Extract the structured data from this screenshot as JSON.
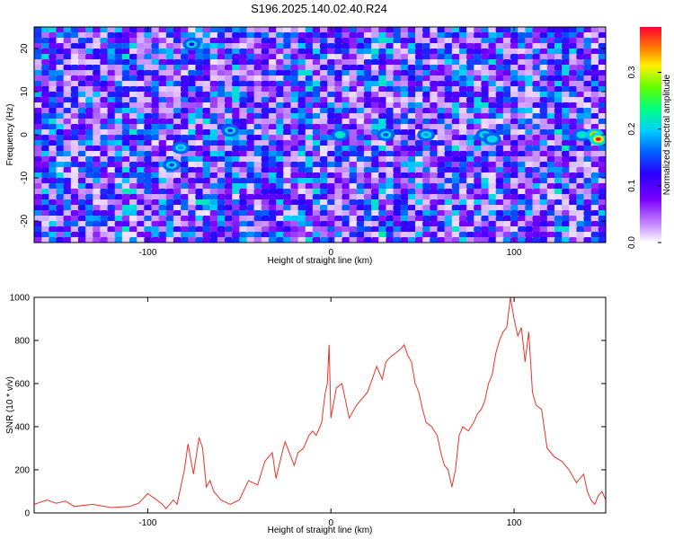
{
  "figure_title": "S196.2025.140.02.40.R24",
  "colorbar": {
    "label": "Normalized spectral amplitude",
    "ticks": [
      "0.0",
      "0.1",
      "0.2",
      "0.3"
    ],
    "tick_values": [
      0.0,
      0.1,
      0.2,
      0.3
    ],
    "range": [
      0,
      0.38
    ]
  },
  "chart_data": [
    {
      "type": "heatmap",
      "title": "S196.2025.140.02.40.R24",
      "xlabel": "Height of straight line (km)",
      "ylabel": "Frequency (Hz)",
      "xlim": [
        -162,
        150
      ],
      "ylim": [
        -25,
        25
      ],
      "x_ticks": [
        -100,
        0,
        100
      ],
      "y_ticks": [
        -20,
        -10,
        0,
        10,
        20
      ],
      "x_tick_labels": [
        "-100",
        "0",
        "100"
      ],
      "y_tick_labels": [
        "-20",
        "-10",
        "0",
        "10",
        "20"
      ],
      "colormap": "rainbow (white-purple-blue-cyan-green-yellow-red)",
      "value_range": [
        0,
        0.38
      ],
      "hotspots": [
        {
          "x": -82,
          "y": -3,
          "value": 0.18
        },
        {
          "x": -87,
          "y": -7,
          "value": 0.15
        },
        {
          "x": -55,
          "y": 1,
          "value": 0.14
        },
        {
          "x": -76,
          "y": 21,
          "value": 0.12
        },
        {
          "x": 5,
          "y": 0,
          "value": 0.22
        },
        {
          "x": 30,
          "y": 0,
          "value": 0.15
        },
        {
          "x": 52,
          "y": 0,
          "value": 0.18
        },
        {
          "x": 84,
          "y": 0,
          "value": 0.17
        },
        {
          "x": 88,
          "y": -1,
          "value": 0.2
        },
        {
          "x": 137,
          "y": 0,
          "value": 0.22
        },
        {
          "x": 144,
          "y": 0,
          "value": 0.35
        },
        {
          "x": 146,
          "y": -1,
          "value": 0.38
        }
      ]
    },
    {
      "type": "line",
      "xlabel": "Height of straight line (km)",
      "ylabel": "SNR (10 * v/v)",
      "xlim": [
        -162,
        150
      ],
      "ylim": [
        0,
        1000
      ],
      "x_ticks": [
        -100,
        0,
        100
      ],
      "y_ticks": [
        0,
        200,
        400,
        600,
        800,
        1000
      ],
      "x_tick_labels": [
        "-100",
        "0",
        "100"
      ],
      "y_tick_labels": [
        "0",
        "200",
        "400",
        "600",
        "800",
        "1000"
      ],
      "series": [
        {
          "color": "#e8332a",
          "x": [
            -162,
            -155,
            -150,
            -145,
            -140,
            -130,
            -120,
            -110,
            -105,
            -100,
            -95,
            -92,
            -90,
            -86,
            -84,
            -80,
            -78,
            -75,
            -72,
            -70,
            -68,
            -66,
            -64,
            -60,
            -55,
            -50,
            -45,
            -40,
            -36,
            -32,
            -30,
            -26,
            -25,
            -20,
            -18,
            -15,
            -12,
            -10,
            -8,
            -6,
            -5,
            -4,
            -3,
            -2,
            -1,
            0,
            3,
            6,
            10,
            14,
            18,
            20,
            25,
            28,
            30,
            32,
            35,
            38,
            40,
            42,
            44,
            46,
            48,
            50,
            52,
            55,
            58,
            60,
            62,
            64,
            66,
            68,
            70,
            72,
            75,
            78,
            80,
            82,
            84,
            86,
            88,
            90,
            92,
            94,
            96,
            98,
            100,
            102,
            104,
            106,
            108,
            110,
            112,
            115,
            118,
            122,
            126,
            130,
            134,
            138,
            140,
            142,
            144,
            146,
            148,
            150
          ],
          "values": [
            40,
            60,
            45,
            55,
            30,
            40,
            25,
            30,
            45,
            90,
            60,
            40,
            20,
            60,
            40,
            200,
            320,
            180,
            350,
            300,
            120,
            150,
            100,
            60,
            40,
            60,
            150,
            130,
            240,
            280,
            160,
            300,
            330,
            220,
            280,
            300,
            360,
            380,
            360,
            400,
            420,
            500,
            560,
            600,
            780,
            440,
            580,
            600,
            440,
            500,
            540,
            560,
            680,
            620,
            700,
            720,
            740,
            760,
            780,
            730,
            700,
            600,
            560,
            480,
            420,
            400,
            360,
            280,
            220,
            200,
            120,
            200,
            360,
            400,
            380,
            420,
            460,
            480,
            520,
            600,
            640,
            740,
            800,
            840,
            860,
            1000,
            900,
            820,
            860,
            700,
            840,
            560,
            500,
            480,
            300,
            260,
            240,
            200,
            140,
            180,
            100,
            60,
            40,
            80,
            100,
            60
          ]
        }
      ]
    }
  ]
}
